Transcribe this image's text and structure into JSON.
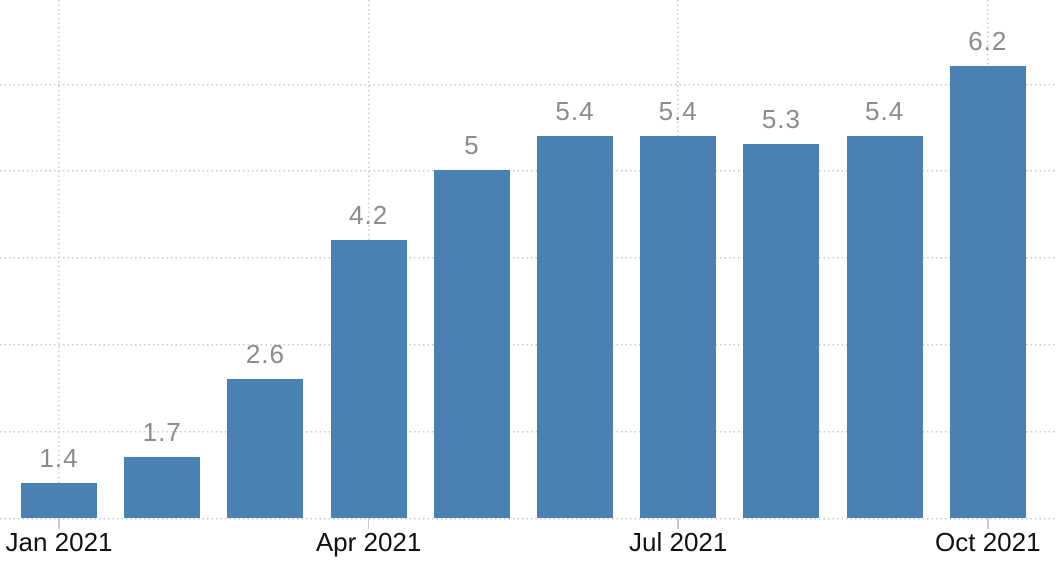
{
  "chart_data": {
    "type": "bar",
    "title": "",
    "values": [
      1.4,
      1.7,
      2.6,
      4.2,
      5,
      5.4,
      5.4,
      5.3,
      5.4,
      6.2
    ],
    "bar_labels": [
      "1.4",
      "1.7",
      "2.6",
      "4.2",
      "5",
      "5.4",
      "5.4",
      "5.3",
      "5.4",
      "6.2"
    ],
    "x_ticks": [
      {
        "label": "Jan 2021",
        "bar_index": 0
      },
      {
        "label": "Apr 2021",
        "bar_index": 3
      },
      {
        "label": "Jul 2021",
        "bar_index": 6
      },
      {
        "label": "Oct 2021",
        "bar_index": 9
      }
    ],
    "y_axis": {
      "visible_min": 1,
      "visible_max": 7,
      "gridline_values": [
        2,
        3,
        4,
        5,
        6
      ],
      "axis_labels_shown": false
    },
    "grid": "dotted",
    "legend": "none",
    "colors": {
      "bar": "#4981B3",
      "value_label": "#8C8C8C",
      "axis_label": "#111111",
      "gridline": "#C9C9C9",
      "tick": "#C9C9C9",
      "background": "#FFFFFF"
    }
  }
}
